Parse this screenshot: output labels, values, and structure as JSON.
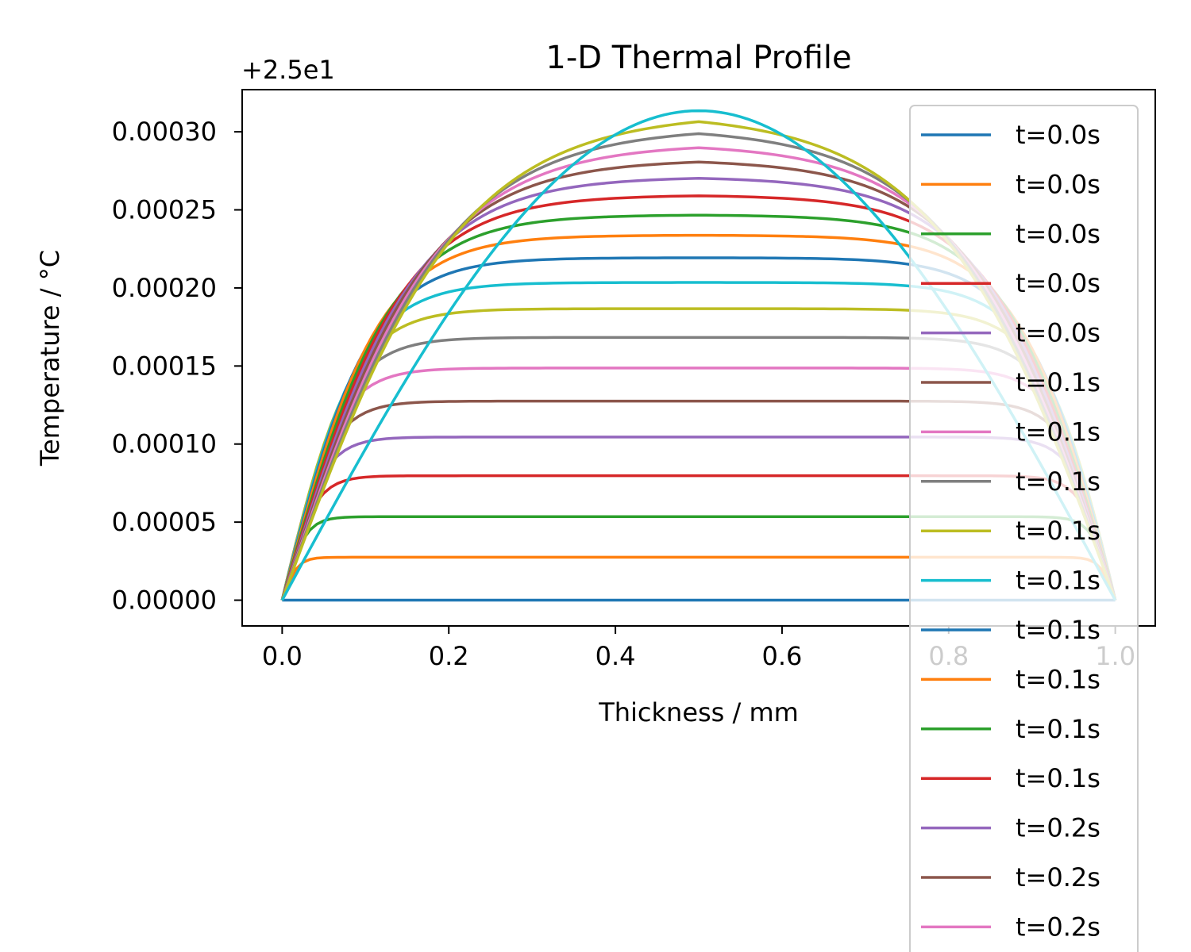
{
  "chart_data": {
    "type": "line",
    "title": "1-D Thermal Profile",
    "xlabel": "Thickness / mm",
    "ylabel": "Temperature / °C",
    "offset_label": "+2.5e1",
    "y_offset": 25,
    "xlim": [
      -0.048,
      1.048
    ],
    "ylim": [
      -1.65e-05,
      0.000327
    ],
    "x_ticks": [
      0.0,
      0.2,
      0.4,
      0.6,
      0.8,
      1.0
    ],
    "x_tick_labels": [
      "0.0",
      "0.2",
      "0.4",
      "0.6",
      "0.8",
      "1.0"
    ],
    "y_ticks": [
      0.0,
      5e-05,
      0.0001,
      0.00015,
      0.0002,
      0.00025,
      0.0003
    ],
    "y_tick_labels": [
      "0.00000",
      "0.00005",
      "0.00010",
      "0.00015",
      "0.00020",
      "0.00025",
      "0.00030"
    ],
    "grid": false,
    "legend_position": "upper-right",
    "colors": [
      "#1f77b4",
      "#ff7f0e",
      "#2ca02c",
      "#d62728",
      "#9467bd",
      "#8c564b",
      "#e377c2",
      "#7f7f7f",
      "#bcbd22",
      "#17becf"
    ],
    "x_range": [
      0.0,
      1.0
    ],
    "series": [
      {
        "name": "t=0.0s",
        "plateau": 0.0,
        "edge_width": 0.0
      },
      {
        "name": "t=0.0s",
        "plateau": 2.75e-05,
        "edge_width": 0.04
      },
      {
        "name": "t=0.0s",
        "plateau": 5.35e-05,
        "edge_width": 0.06
      },
      {
        "name": "t=0.0s",
        "plateau": 7.97e-05,
        "edge_width": 0.085
      },
      {
        "name": "t=0.0s",
        "plateau": 0.0001045,
        "edge_width": 0.105
      },
      {
        "name": "t=0.1s",
        "plateau": 0.0001275,
        "edge_width": 0.125
      },
      {
        "name": "t=0.1s",
        "plateau": 0.0001487,
        "edge_width": 0.145
      },
      {
        "name": "t=0.1s",
        "plateau": 0.0001683,
        "edge_width": 0.165
      },
      {
        "name": "t=0.1s",
        "plateau": 0.0001867,
        "edge_width": 0.185
      },
      {
        "name": "t=0.1s",
        "plateau": 0.0002035,
        "edge_width": 0.21
      },
      {
        "name": "t=0.1s",
        "plateau": 0.0002193,
        "edge_width": 0.235
      },
      {
        "name": "t=0.1s",
        "plateau": 0.0002337,
        "edge_width": 0.26
      },
      {
        "name": "t=0.1s",
        "plateau": 0.0002466,
        "edge_width": 0.29
      },
      {
        "name": "t=0.1s",
        "plateau": 0.000259,
        "edge_width": 0.32
      },
      {
        "name": "t=0.2s",
        "plateau": 0.0002702,
        "edge_width": 0.35
      },
      {
        "name": "t=0.2s",
        "plateau": 0.0002806,
        "edge_width": 0.38
      },
      {
        "name": "t=0.2s",
        "plateau": 0.0002898,
        "edge_width": 0.41
      },
      {
        "name": "t=0.2s",
        "plateau": 0.0002988,
        "edge_width": 0.44
      },
      {
        "name": "t=0.2s",
        "plateau": 0.0003065,
        "edge_width": 0.47
      },
      {
        "name": "t=0.2s",
        "plateau": 0.0003135,
        "edge_width": 0.5
      }
    ]
  }
}
